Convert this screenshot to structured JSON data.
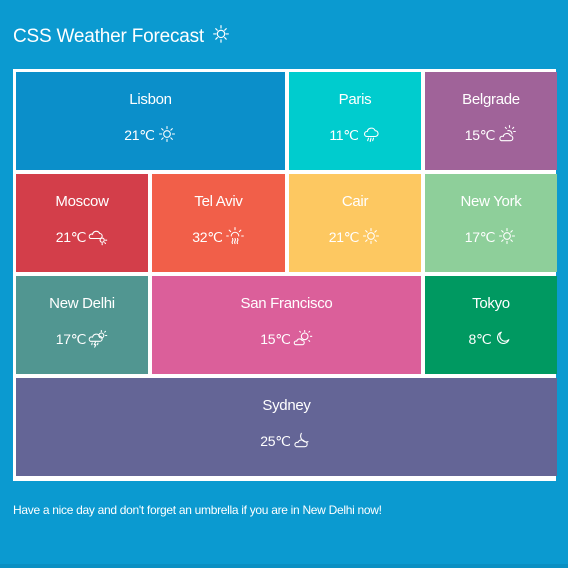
{
  "header": {
    "title": "CSS Weather Forecast",
    "icon": "sun-icon"
  },
  "cities": [
    {
      "key": "lisbon",
      "name": "Lisbon",
      "temp": "21℃",
      "icon": "sun-icon",
      "color": "#0b8fca"
    },
    {
      "key": "paris",
      "name": "Paris",
      "temp": "11℃",
      "icon": "rain-cloud-icon",
      "color": "#00ccce"
    },
    {
      "key": "belgrade",
      "name": "Belgrade",
      "temp": "15℃",
      "icon": "sun-cloud-icon",
      "color": "#a06399"
    },
    {
      "key": "moscow",
      "name": "Moscow",
      "temp": "21℃",
      "icon": "cloud-sun-icon",
      "color": "#d33e4a"
    },
    {
      "key": "telaviv",
      "name": "Tel Aviv",
      "temp": "32℃",
      "icon": "heat-sun-icon",
      "color": "#f15f49"
    },
    {
      "key": "cair",
      "name": "Cair",
      "temp": "21℃",
      "icon": "sun-icon",
      "color": "#fdc861"
    },
    {
      "key": "newyork",
      "name": "New York",
      "temp": "17℃",
      "icon": "sun-icon",
      "color": "#8ecf9a"
    },
    {
      "key": "newdelhi",
      "name": "New Delhi",
      "temp": "17℃",
      "icon": "storm-cloud-sun-icon",
      "color": "#519691"
    },
    {
      "key": "sanfrancisco",
      "name": "San Francisco",
      "temp": "15℃",
      "icon": "sun-cloud-icon",
      "color": "#db5f9a"
    },
    {
      "key": "tokyo",
      "name": "Tokyo",
      "temp": "8℃",
      "icon": "moon-icon",
      "color": "#009961"
    },
    {
      "key": "sydney",
      "name": "Sydney",
      "temp": "25℃",
      "icon": "moon-cloud-icon",
      "color": "#646596"
    }
  ],
  "footer": {
    "message": "Have a nice day and don't forget an umbrella if you are in New Delhi now!"
  },
  "colors": {
    "background": "#0b9ad0",
    "grid_border": "#ffffff",
    "text": "#ffffff"
  }
}
